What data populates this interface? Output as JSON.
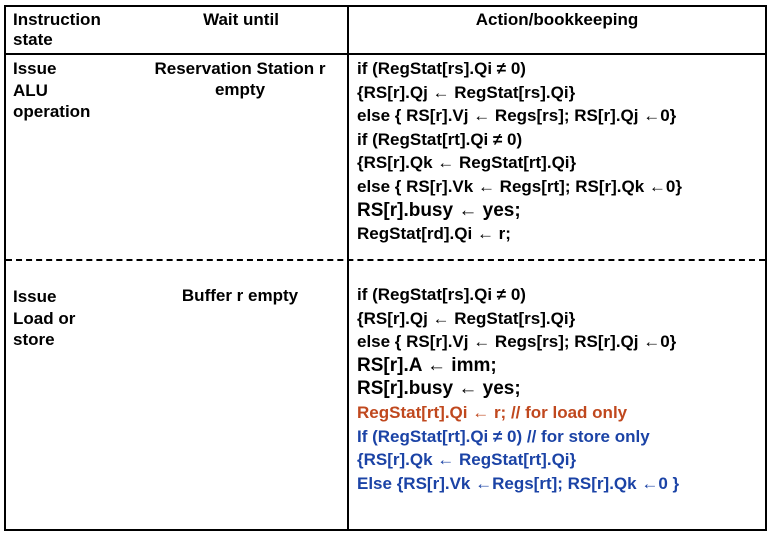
{
  "header": {
    "col1": "Instruction state",
    "col2": "Wait until",
    "col3": "Action/bookkeeping"
  },
  "row1": {
    "state": [
      "Issue",
      "ALU",
      "operation"
    ],
    "wait": "Reservation Station r empty",
    "lines": [
      "if (RegStat[rs].Qi ≠ 0)",
      "{RS[r].Qj ← RegStat[rs].Qi}",
      "else { RS[r].Vj ← Regs[rs]; RS[r].Qj ←0}",
      "if (RegStat[rt].Qi ≠ 0)",
      "{RS[r].Qk ← RegStat[rt].Qi}",
      "else { RS[r].Vk ← Regs[rt]; RS[r].Qk ←0}",
      "RS[r].busy ← yes;",
      "RegStat[rd].Qi ← r;"
    ]
  },
  "row2": {
    "state": [
      "Issue",
      "Load or",
      "store"
    ],
    "wait": "Buffer r empty",
    "lines": [
      "if (RegStat[rs].Qi ≠ 0)",
      "{RS[r].Qj ← RegStat[rs].Qi}",
      "else { RS[r].Vj ← Regs[rs]; RS[r].Qj ←0}",
      "RS[r].A ← imm;",
      "RS[r].busy ← yes;",
      "RegStat[rt].Qi ← r;  // for load only",
      "If (RegStat[rt].Qi ≠ 0)   // for store only",
      "{RS[r].Qk ← RegStat[rt].Qi}",
      "Else {RS[r].Vk ←Regs[rt]; RS[r].Qk ←0 }"
    ]
  },
  "colors": {
    "load_only": "#c0481e",
    "store_only": "#1b43a6",
    "text": "#000000"
  }
}
